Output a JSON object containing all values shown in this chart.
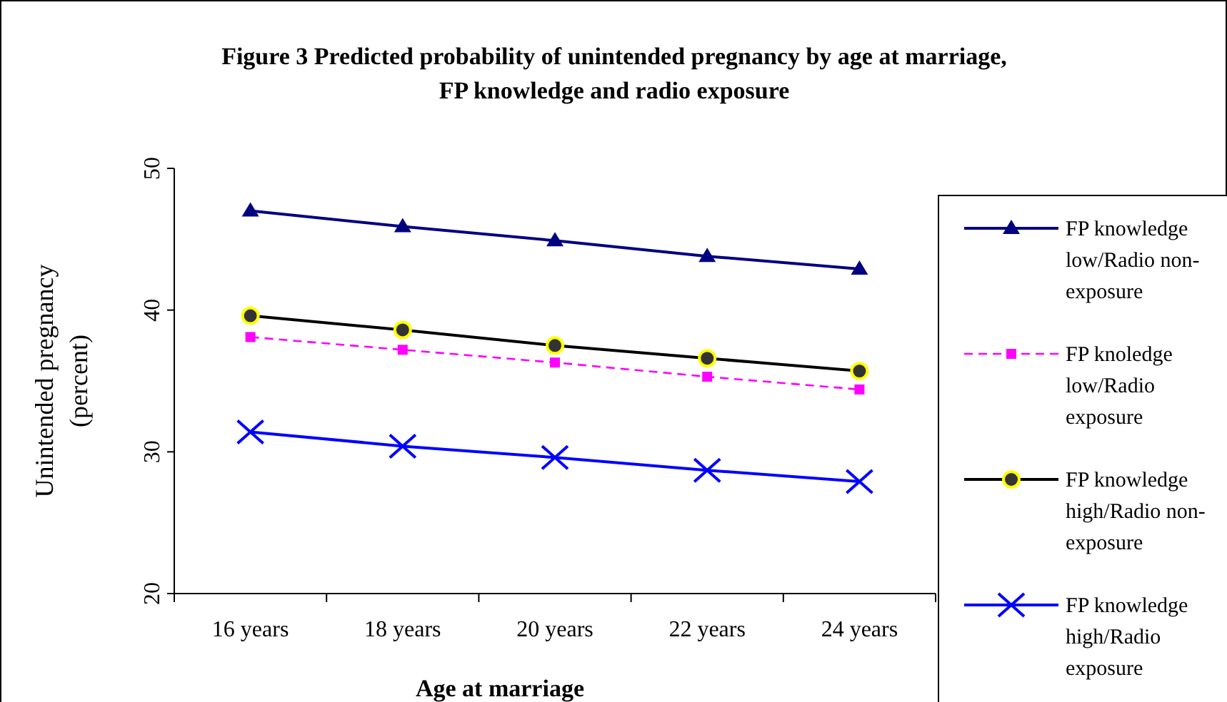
{
  "chart_data": {
    "type": "line",
    "title": "Figure 3 Predicted probability of unintended pregnancy by age at marriage, FP knowledge and radio exposure",
    "xlabel": "Age at marriage",
    "ylabel": "Unintended pregnancy (percent)",
    "categories": [
      "16 years",
      "18 years",
      "20 years",
      "22 years",
      "24 years"
    ],
    "ylim": [
      20,
      50
    ],
    "yticks": [
      20,
      30,
      40,
      50
    ],
    "grid": false,
    "legend": "right",
    "series": [
      {
        "name": "FP knowledge low/Radio non-exposure",
        "color": "#000080",
        "marker": "triangle",
        "line_style": "solid",
        "values": [
          47.0,
          45.9,
          44.9,
          43.8,
          42.9
        ]
      },
      {
        "name": "FP knoledge low/Radio exposure",
        "color": "#ff00ff",
        "marker": "square",
        "line_style": "dashed",
        "values": [
          38.1,
          37.2,
          36.3,
          35.3,
          34.4
        ]
      },
      {
        "name": "FP knowledge high/Radio non-exposure",
        "color": "#000000",
        "marker": "circle",
        "line_style": "solid",
        "values": [
          39.6,
          38.6,
          37.5,
          36.6,
          35.7
        ]
      },
      {
        "name": "FP knowledge high/Radio exposure",
        "color": "#0000ff",
        "marker": "cross",
        "line_style": "solid",
        "values": [
          31.4,
          30.4,
          29.6,
          28.7,
          27.9
        ]
      }
    ]
  }
}
